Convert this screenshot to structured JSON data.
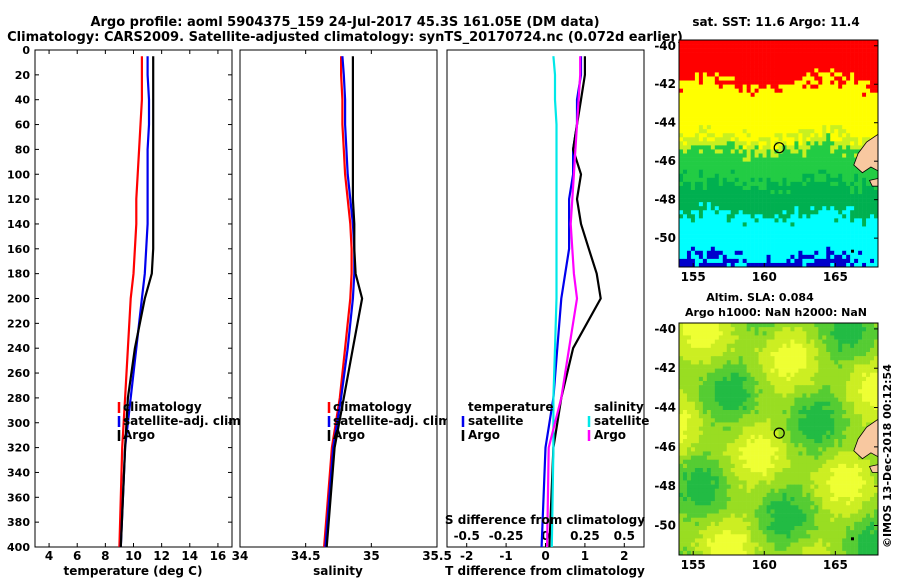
{
  "title": {
    "line1": "Argo profile: aoml 5904375_159 24-Jul-2017 45.3S 161.05E (DM data)",
    "line2": "Climatology: CARS2009. Satellite-adjusted climatology: synTS_20170724.nc (0.072d earlier)"
  },
  "colors": {
    "climatology": "#ff0000",
    "satellite": "#0000ee",
    "argo": "#000000",
    "sat_salinity": "#00e8e8",
    "argo_salinity": "#ff00ff"
  },
  "chart_data": [
    {
      "type": "line",
      "name": "temperature",
      "xlabel": "temperature (deg C)",
      "ylabel": "",
      "xlim": [
        3,
        17
      ],
      "ylim": [
        400,
        0
      ],
      "xticks": [
        "4",
        "6",
        "8",
        "10",
        "12",
        "14",
        "16"
      ],
      "yticks": [
        "0",
        "20",
        "40",
        "60",
        "80",
        "100",
        "120",
        "140",
        "160",
        "180",
        "200",
        "220",
        "240",
        "260",
        "280",
        "300",
        "320",
        "340",
        "360",
        "380",
        "400"
      ],
      "legend": [
        "climatology",
        "satellite-adj. clim.",
        "Argo"
      ],
      "series": [
        {
          "name": "climatology",
          "x": [
            10.6,
            10.6,
            10.6,
            10.5,
            10.4,
            10.3,
            10.2,
            10.2,
            10.1,
            10.0,
            9.8,
            9.6,
            9.4,
            9.2,
            9.0
          ],
          "y": [
            5,
            20,
            40,
            60,
            80,
            100,
            120,
            140,
            160,
            180,
            200,
            240,
            280,
            320,
            400
          ]
        },
        {
          "name": "satellite-adj. clim.",
          "x": [
            11.0,
            11.0,
            11.1,
            11.1,
            11.0,
            11.0,
            11.0,
            11.0,
            10.9,
            10.8,
            10.6,
            10.2,
            9.8,
            9.4,
            9.1
          ],
          "y": [
            5,
            20,
            40,
            60,
            80,
            100,
            120,
            140,
            160,
            180,
            200,
            240,
            280,
            320,
            400
          ]
        },
        {
          "name": "Argo",
          "x": [
            11.4,
            11.4,
            11.4,
            11.4,
            11.4,
            11.4,
            11.4,
            11.4,
            11.4,
            11.3,
            10.8,
            10.1,
            9.6,
            9.4,
            9.1
          ],
          "y": [
            5,
            20,
            40,
            60,
            80,
            100,
            120,
            140,
            160,
            180,
            200,
            240,
            280,
            320,
            400
          ]
        }
      ]
    },
    {
      "type": "line",
      "name": "salinity",
      "xlabel": "salinity",
      "xlim": [
        34,
        35.5
      ],
      "ylim": [
        400,
        0
      ],
      "xticks": [
        "34",
        "34.5",
        "35",
        "35.5"
      ],
      "legend": [
        "climatology",
        "satellite-adj. clim.",
        "Argo"
      ],
      "series": [
        {
          "name": "climatology",
          "x": [
            34.77,
            34.77,
            34.78,
            34.78,
            34.79,
            34.8,
            34.82,
            34.84,
            34.85,
            34.85,
            34.84,
            34.8,
            34.76,
            34.7,
            34.64
          ],
          "y": [
            5,
            20,
            40,
            60,
            80,
            100,
            120,
            140,
            160,
            180,
            200,
            240,
            280,
            320,
            400
          ]
        },
        {
          "name": "satellite-adj. clim.",
          "x": [
            34.78,
            34.79,
            34.8,
            34.8,
            34.81,
            34.82,
            34.84,
            34.86,
            34.87,
            34.87,
            34.86,
            34.82,
            34.77,
            34.71,
            34.65
          ],
          "y": [
            5,
            20,
            40,
            60,
            80,
            100,
            120,
            140,
            160,
            180,
            200,
            240,
            280,
            320,
            400
          ]
        },
        {
          "name": "Argo",
          "x": [
            34.86,
            34.86,
            34.86,
            34.86,
            34.86,
            34.86,
            34.86,
            34.87,
            34.87,
            34.88,
            34.93,
            34.86,
            34.79,
            34.72,
            34.66
          ],
          "y": [
            5,
            20,
            40,
            60,
            80,
            100,
            120,
            140,
            160,
            180,
            200,
            240,
            280,
            320,
            400
          ]
        }
      ]
    },
    {
      "type": "line",
      "name": "difference",
      "xlabel": "T difference from climatology",
      "xlabel_top": "S difference from climatology",
      "xlim": [
        -2.5,
        2.5
      ],
      "ylim": [
        400,
        0
      ],
      "xticks": [
        "-2",
        "-1",
        "0",
        "1",
        "2"
      ],
      "xticks_s": [
        "-0.5",
        "-0.25",
        "0",
        "0.25",
        "0.5"
      ],
      "legend_temperature": {
        "title": "temperature",
        "items": [
          "satellite",
          "Argo"
        ]
      },
      "legend_salinity": {
        "title": "salinity",
        "items": [
          "satellite",
          "Argo"
        ]
      },
      "series": [
        {
          "name": "temperature satellite",
          "x": [
            0.9,
            0.9,
            0.8,
            0.8,
            0.7,
            0.7,
            0.6,
            0.6,
            0.6,
            0.5,
            0.4,
            0.3,
            0.2,
            0.0,
            -0.1
          ],
          "y": [
            5,
            20,
            40,
            60,
            80,
            100,
            120,
            140,
            160,
            180,
            200,
            240,
            280,
            320,
            400
          ]
        },
        {
          "name": "temperature Argo",
          "x": [
            1.0,
            1.0,
            0.9,
            0.8,
            0.7,
            0.9,
            0.8,
            0.9,
            1.1,
            1.3,
            1.4,
            0.7,
            0.4,
            0.2,
            0.1
          ],
          "y": [
            5,
            20,
            40,
            60,
            80,
            100,
            120,
            140,
            160,
            180,
            200,
            240,
            280,
            320,
            400
          ]
        },
        {
          "name": "salinity satellite",
          "x": [
            0.05,
            0.06,
            0.06,
            0.07,
            0.07,
            0.07,
            0.07,
            0.07,
            0.07,
            0.07,
            0.07,
            0.06,
            0.05,
            0.05,
            0.04
          ],
          "y": [
            5,
            20,
            40,
            60,
            80,
            100,
            120,
            140,
            160,
            180,
            200,
            240,
            280,
            320,
            400
          ]
        },
        {
          "name": "salinity Argo",
          "x": [
            0.22,
            0.22,
            0.21,
            0.2,
            0.19,
            0.18,
            0.17,
            0.16,
            0.17,
            0.18,
            0.2,
            0.15,
            0.1,
            0.02,
            0.01
          ],
          "y": [
            5,
            20,
            40,
            60,
            80,
            100,
            120,
            140,
            160,
            180,
            200,
            240,
            280,
            320,
            400
          ]
        }
      ]
    }
  ],
  "maps": {
    "sst": {
      "title": "sat. SST: 11.6 Argo: 11.4",
      "yticks": [
        "-40",
        "-42",
        "-44",
        "-46",
        "-48",
        "-50"
      ],
      "xticks": [
        "155",
        "160",
        "165"
      ],
      "palette": [
        "#ff0000",
        "#ffff00",
        "#c8f020",
        "#22cc44",
        "#00b050",
        "#00ffff",
        "#0000cc"
      ],
      "land": "#f8c8a0",
      "lon_range": [
        154,
        168
      ],
      "lat_range": [
        -51.5,
        -39.7
      ],
      "marker": {
        "lon": 161.05,
        "lat": -45.3
      }
    },
    "sla": {
      "title1": "Altim. SLA: 0.084",
      "title2": "Argo h1000: NaN h2000: NaN",
      "yticks": [
        "-40",
        "-42",
        "-44",
        "-46",
        "-48",
        "-50"
      ],
      "xticks": [
        "155",
        "160",
        "165"
      ],
      "palette": [
        "#22bb44",
        "#55cc33",
        "#99dd22",
        "#ccee22",
        "#eeff33"
      ],
      "lon_range": [
        154,
        168
      ],
      "lat_range": [
        -51.5,
        -39.7
      ],
      "marker": {
        "lon": 161.05,
        "lat": -45.3
      }
    }
  },
  "credit": "©IMOS 13-Dec-2018 00:12:54"
}
